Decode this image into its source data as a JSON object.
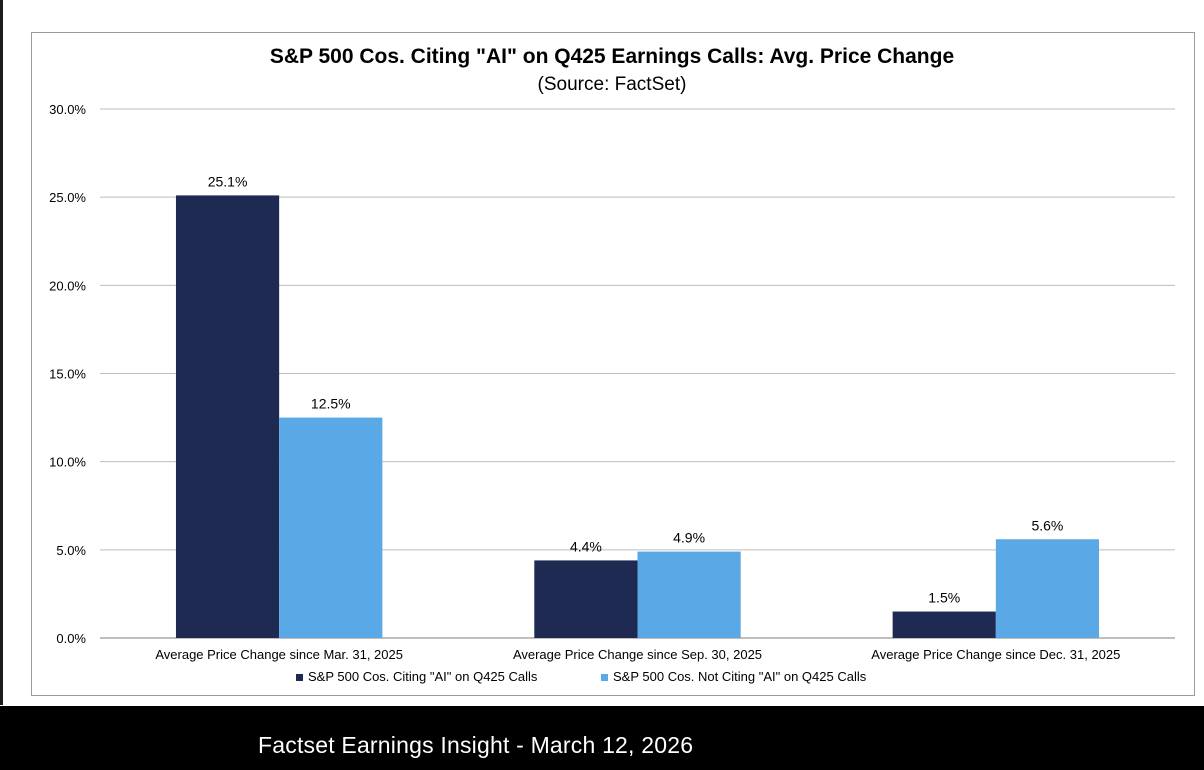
{
  "chart_data": {
    "type": "bar",
    "title": "S&P 500 Cos. Citing \"AI\" on Q425 Earnings Calls: Avg. Price Change",
    "subtitle": "(Source: FactSet)",
    "categories": [
      "Average Price Change since Mar. 31, 2025",
      "Average Price Change since Sep. 30, 2025",
      "Average Price Change since Dec. 31, 2025"
    ],
    "series": [
      {
        "name": "S&P 500 Cos. Citing \"AI\" on Q425 Calls",
        "color": "#1f2a52",
        "values": [
          25.1,
          4.4,
          1.5
        ],
        "labels": [
          "25.1%",
          "4.4%",
          "1.5%"
        ]
      },
      {
        "name": "S&P 500 Cos. Not Citing \"AI\" on Q425 Calls",
        "color": "#5aa9e6",
        "values": [
          12.5,
          4.9,
          5.6
        ],
        "labels": [
          "12.5%",
          "4.9%",
          "5.6%"
        ]
      }
    ],
    "yticks": [
      "0.0%",
      "5.0%",
      "10.0%",
      "15.0%",
      "20.0%",
      "25.0%",
      "30.0%"
    ],
    "ylim": [
      0,
      30
    ],
    "grid": true,
    "legend_position": "bottom"
  },
  "footer": {
    "caption": "Factset Earnings Insight - March 12, 2026"
  }
}
